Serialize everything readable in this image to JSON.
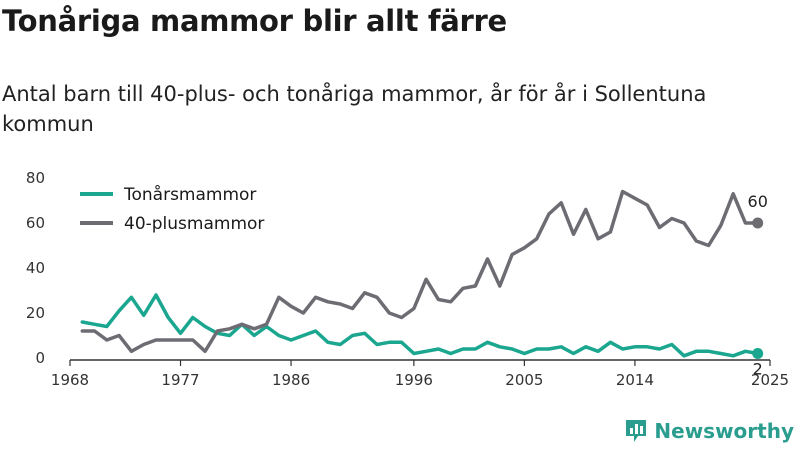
{
  "header": {
    "title": "Tonåriga mammor blir allt färre",
    "subtitle": "Antal barn till 40-plus- och tonåriga mammor, år för år i Sollentuna kommun"
  },
  "brand": {
    "name": "Newsworthy",
    "icon": "bar-chart-logo-icon"
  },
  "chart_data": {
    "type": "line",
    "xlim": [
      1968,
      2025
    ],
    "ylim": [
      0,
      80
    ],
    "x_ticks": [
      1968,
      1977,
      1986,
      1996,
      2005,
      2014,
      2025
    ],
    "y_ticks": [
      0,
      20,
      40,
      60,
      80
    ],
    "grid": false,
    "legend_position": "top-left",
    "x": [
      1969,
      1970,
      1971,
      1972,
      1973,
      1974,
      1975,
      1976,
      1977,
      1978,
      1979,
      1980,
      1981,
      1982,
      1983,
      1984,
      1985,
      1986,
      1987,
      1988,
      1989,
      1990,
      1991,
      1992,
      1993,
      1994,
      1995,
      1996,
      1997,
      1998,
      1999,
      2000,
      2001,
      2002,
      2003,
      2004,
      2005,
      2006,
      2007,
      2008,
      2009,
      2010,
      2011,
      2012,
      2013,
      2014,
      2015,
      2016,
      2017,
      2018,
      2019,
      2020,
      2021,
      2022,
      2023,
      2024
    ],
    "series": [
      {
        "name": "Tonårsmammor",
        "color": "#1aa68f",
        "end_label": "2",
        "values": [
          16,
          15,
          14,
          21,
          27,
          19,
          28,
          18,
          11,
          18,
          14,
          11,
          10,
          15,
          10,
          14,
          10,
          8,
          10,
          12,
          7,
          6,
          10,
          11,
          6,
          7,
          7,
          2,
          3,
          4,
          2,
          4,
          4,
          7,
          5,
          4,
          2,
          4,
          4,
          5,
          2,
          5,
          3,
          7,
          4,
          5,
          5,
          4,
          6,
          1,
          3,
          3,
          2,
          1,
          3,
          2
        ]
      },
      {
        "name": "40-plusmammor",
        "color": "#6e6c73",
        "end_label": "60",
        "values": [
          12,
          12,
          8,
          10,
          3,
          6,
          8,
          8,
          8,
          8,
          3,
          12,
          13,
          15,
          13,
          15,
          27,
          23,
          20,
          27,
          25,
          24,
          22,
          29,
          27,
          20,
          18,
          22,
          35,
          26,
          25,
          31,
          32,
          44,
          32,
          46,
          49,
          53,
          64,
          69,
          55,
          66,
          53,
          56,
          74,
          71,
          68,
          58,
          62,
          60,
          52,
          50,
          59,
          73,
          60,
          60
        ]
      }
    ]
  }
}
